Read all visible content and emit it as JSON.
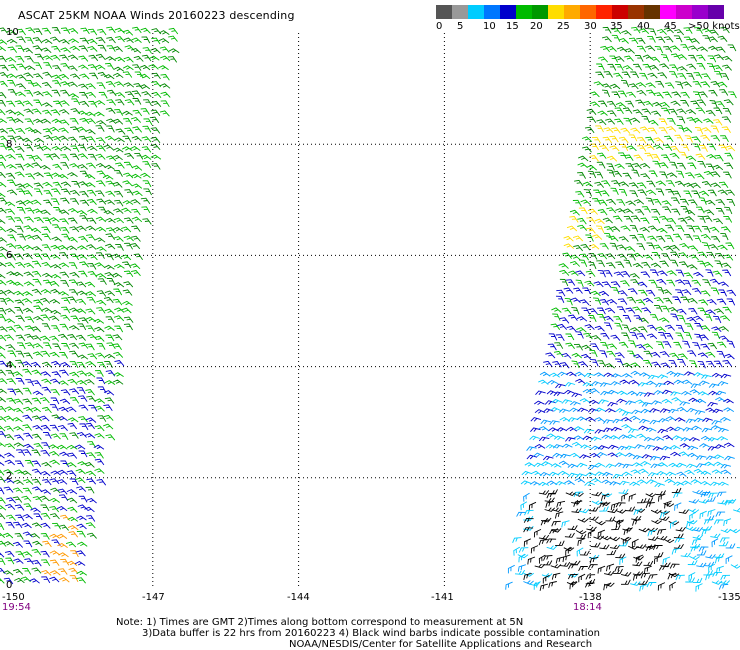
{
  "title": "ASCAT 25KM NOAA Winds 20160223 descending",
  "colorbar": {
    "colors": [
      "#555555",
      "#999999",
      "#00ccff",
      "#0077ff",
      "#0000cc",
      "#00bb00",
      "#009900",
      "#ffdd00",
      "#ffaa00",
      "#ff6600",
      "#ff2200",
      "#cc0000",
      "#993300",
      "#663300",
      "#ff00ff",
      "#cc00cc",
      "#9900cc",
      "#6600aa"
    ],
    "labels": [
      "0",
      "5",
      "10",
      "15",
      "20",
      "25",
      "30",
      "35",
      "40",
      "45",
      ">50 knots"
    ]
  },
  "axes": {
    "y_ticks": [
      "10",
      "8",
      "6",
      "4",
      "2",
      "0"
    ],
    "x_ticks": [
      "-150",
      "-147",
      "-144",
      "-141",
      "-138",
      "-135"
    ],
    "xlim": [
      -150,
      -135
    ],
    "ylim": [
      0,
      10
    ]
  },
  "pass_times": [
    "19:54",
    "18:14"
  ],
  "notes": {
    "line1": "Note: 1) Times are GMT 2)Times along bottom correspond to measurement at 5N",
    "line2": "3)Data buffer is 22 hrs from 20160223 4) Black wind barbs indicate possible contamination",
    "line3": "NOAA/NESDIS/Center for Satellite Applications and Research"
  },
  "wind_colors": {
    "dark_green": "#008800",
    "green": "#00bb00",
    "blue": "#0000cc",
    "light_blue": "#0099ff",
    "cyan": "#00ccff",
    "black": "#000000",
    "yellow": "#ffdd00",
    "orange": "#ff9900"
  }
}
